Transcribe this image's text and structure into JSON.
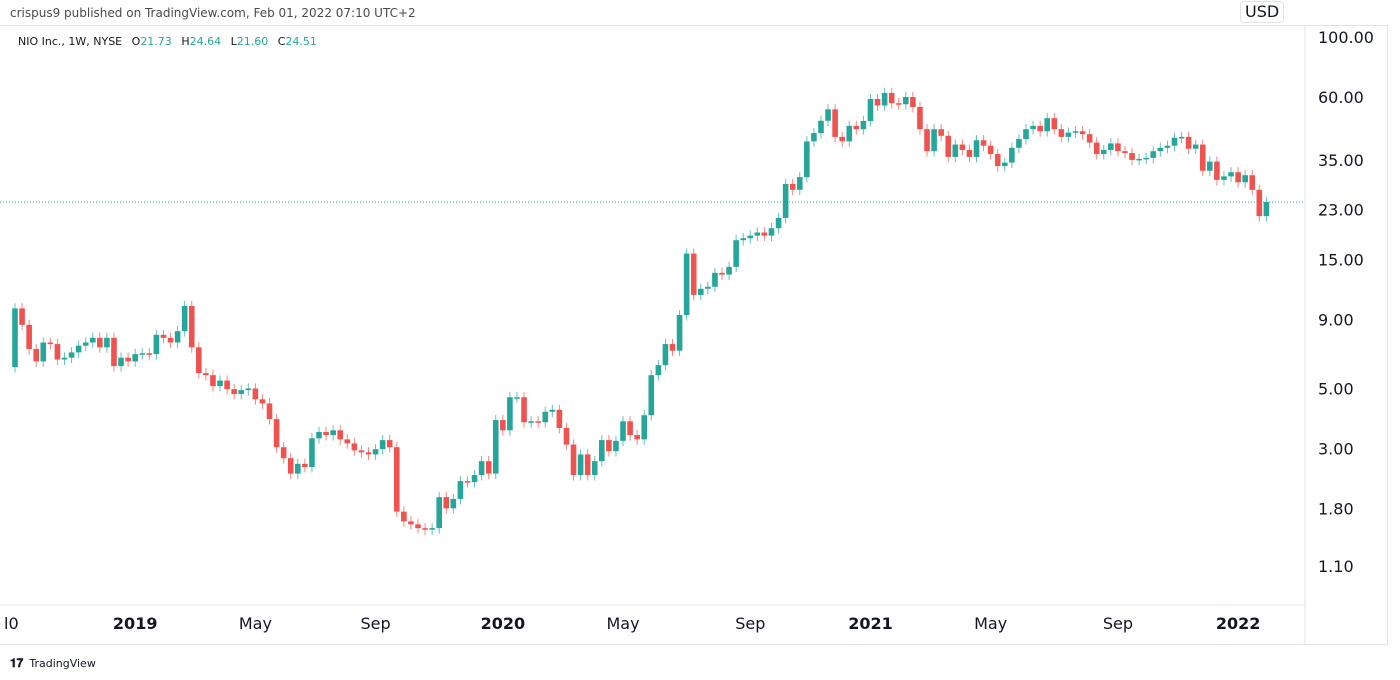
{
  "header": {
    "published": "crispus9 published on TradingView.com, Feb 01, 2022 07:10 UTC+2"
  },
  "legend": {
    "symbol": "NIO Inc., 1W, NYSE",
    "o_label": "O",
    "o": "21.73",
    "h_label": "H",
    "h": "24.64",
    "l_label": "L",
    "l": "21.60",
    "c_label": "C",
    "c": "24.51"
  },
  "currency": "USD",
  "footer": {
    "brand": "TradingView"
  },
  "colors": {
    "up": "#26a69a",
    "down": "#ef5350",
    "last_price_line": "#26a69a"
  },
  "chart_data": {
    "type": "candlestick",
    "interval": "1W",
    "scale": "log",
    "grid": false,
    "ylim": [
      0.85,
      110
    ],
    "y_ticks": [
      "100.00",
      "60.00",
      "35.00",
      "23.00",
      "15.00",
      "9.00",
      "5.00",
      "3.00",
      "1.80",
      "1.10"
    ],
    "y_tick_values": [
      100,
      60,
      35,
      23,
      15,
      9,
      5,
      3,
      1.8,
      1.1
    ],
    "x_ticks": [
      {
        "label": "l0",
        "week": 0,
        "bold": false
      },
      {
        "label": "2019",
        "week": 17,
        "bold": true
      },
      {
        "label": "May",
        "week": 34,
        "bold": false
      },
      {
        "label": "Sep",
        "week": 51,
        "bold": false
      },
      {
        "label": "2020",
        "week": 69,
        "bold": true
      },
      {
        "label": "May",
        "week": 86,
        "bold": false
      },
      {
        "label": "Sep",
        "week": 104,
        "bold": false
      },
      {
        "label": "2021",
        "week": 121,
        "bold": true
      },
      {
        "label": "May",
        "week": 138,
        "bold": false
      },
      {
        "label": "Sep",
        "week": 156,
        "bold": false
      },
      {
        "label": "2022",
        "week": 173,
        "bold": true
      }
    ],
    "first_open": 6.0,
    "closes": [
      9.9,
      8.6,
      7.0,
      6.3,
      7.4,
      7.3,
      6.4,
      6.5,
      6.8,
      7.2,
      7.4,
      7.7,
      7.1,
      7.7,
      6.05,
      6.5,
      6.3,
      6.7,
      6.75,
      6.7,
      7.9,
      7.7,
      7.4,
      8.15,
      10.1,
      7.1,
      5.7,
      5.6,
      5.1,
      5.35,
      4.97,
      4.77,
      4.93,
      5.0,
      4.56,
      4.4,
      3.85,
      3.03,
      2.76,
      2.42,
      2.63,
      2.56,
      3.27,
      3.45,
      3.36,
      3.5,
      3.24,
      3.13,
      2.95,
      2.9,
      2.85,
      2.98,
      3.22,
      3.03,
      1.75,
      1.61,
      1.57,
      1.52,
      1.5,
      1.52,
      1.98,
      1.8,
      1.95,
      2.27,
      2.25,
      2.39,
      2.69,
      2.42,
      3.82,
      3.5,
      4.64,
      4.64,
      3.75,
      3.78,
      3.75,
      4.1,
      4.17,
      3.57,
      3.1,
      2.39,
      2.85,
      2.39,
      2.69,
      3.22,
      2.93,
      3.2,
      3.78,
      3.36,
      3.24,
      3.98,
      5.6,
      6.1,
      7.3,
      6.9,
      9.35,
      15.8,
      11.1,
      11.7,
      11.9,
      13.4,
      13.2,
      14.1,
      17.7,
      18.0,
      18.4,
      18.9,
      18.4,
      19.6,
      21.4,
      28.6,
      27.2,
      30.3,
      41.1,
      44.1,
      49.0,
      54.0,
      42.7,
      41.1,
      46.9,
      45.6,
      48.9,
      59.0,
      55.8,
      62.1,
      56.9,
      56.4,
      60.0,
      55.1,
      45.6,
      37.8,
      45.6,
      43.1,
      36.0,
      40.0,
      38.2,
      36.0,
      41.5,
      39.6,
      36.9,
      33.3,
      34.3,
      38.9,
      41.9,
      45.6,
      46.9,
      44.8,
      50.1,
      45.6,
      42.7,
      44.3,
      44.8,
      43.7,
      40.7,
      36.9,
      38.2,
      40.4,
      37.8,
      37.2,
      35.1,
      35.4,
      35.7,
      37.8,
      38.9,
      39.6,
      42.4,
      42.7,
      38.6,
      40.0,
      32.0,
      34.6,
      29.6,
      30.5,
      31.6,
      29.0,
      30.8,
      27.2,
      21.73,
      24.51
    ],
    "last_price": 24.51
  }
}
